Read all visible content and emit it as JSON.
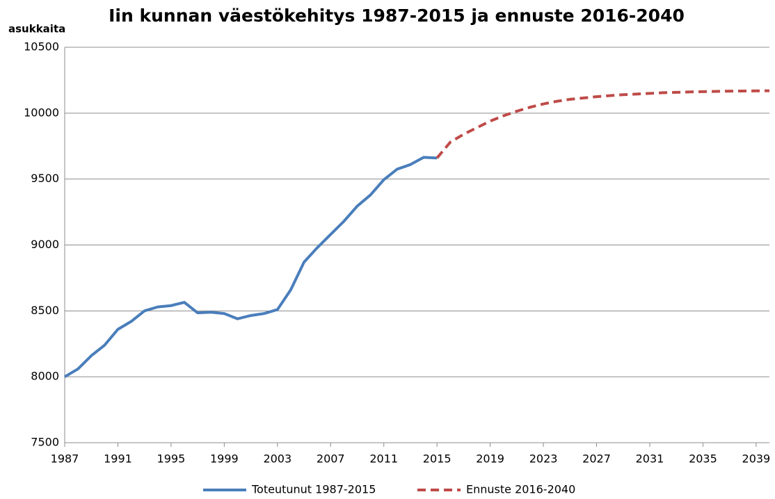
{
  "chart_data": {
    "type": "line",
    "title": "Iin kunnan väestökehitys 1987-2015 ja ennuste 2016-2040",
    "y_label": "asukkaita",
    "xlim": [
      1987,
      2040
    ],
    "xticks": [
      1987,
      1991,
      1995,
      1999,
      2003,
      2007,
      2011,
      2015,
      2019,
      2023,
      2027,
      2031,
      2035,
      2039
    ],
    "ylim": [
      7500,
      10500
    ],
    "yticks": [
      7500,
      8000,
      8500,
      9000,
      9500,
      10000,
      10500
    ],
    "grid": true,
    "legend": "bottom",
    "series": [
      {
        "name": "Toteutunut 1987-2015",
        "color": "#4a7ebb",
        "dashed": false,
        "x": [
          1987,
          1988,
          1989,
          1990,
          1991,
          1992,
          1993,
          1994,
          1995,
          1996,
          1997,
          1998,
          1999,
          2000,
          2001,
          2002,
          2003,
          2004,
          2005,
          2006,
          2007,
          2008,
          2009,
          2010,
          2011,
          2012,
          2013,
          2014,
          2015
        ],
        "values": [
          8000,
          8060,
          8160,
          8240,
          8360,
          8420,
          8500,
          8530,
          8540,
          8565,
          8485,
          8490,
          8480,
          8440,
          8465,
          8480,
          8510,
          8660,
          8870,
          8980,
          9080,
          9180,
          9295,
          9380,
          9495,
          9575,
          9610,
          9665,
          9660
        ]
      },
      {
        "name": "Ennuste 2016-2040",
        "color": "#be4b48",
        "dashed": true,
        "x": [
          2015,
          2016,
          2017,
          2018,
          2019,
          2020,
          2021,
          2022,
          2023,
          2024,
          2025,
          2026,
          2027,
          2028,
          2029,
          2030,
          2031,
          2032,
          2033,
          2034,
          2035,
          2036,
          2037,
          2038,
          2039,
          2040
        ],
        "values": [
          9660,
          9780,
          9840,
          9890,
          9940,
          9980,
          10015,
          10045,
          10070,
          10090,
          10105,
          10115,
          10125,
          10133,
          10140,
          10145,
          10150,
          10155,
          10158,
          10161,
          10163,
          10165,
          10167,
          10168,
          10169,
          10170
        ]
      }
    ]
  }
}
